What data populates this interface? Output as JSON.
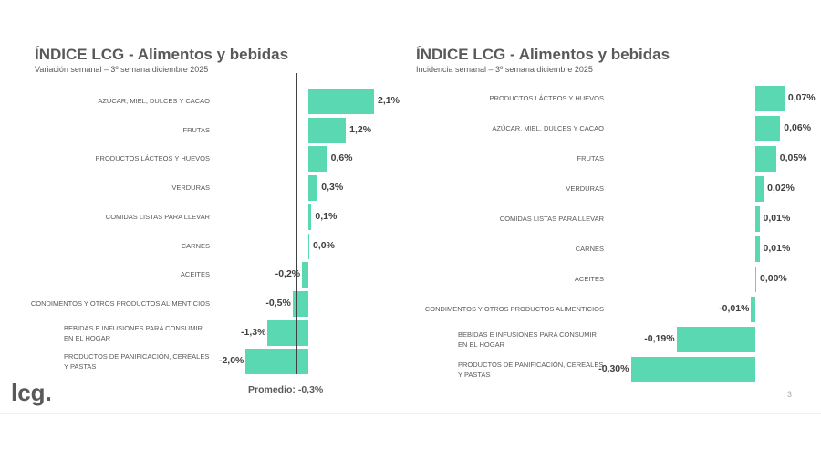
{
  "chart_data": [
    {
      "type": "bar",
      "orientation": "horizontal",
      "title": "ÍNDICE LCG - Alimentos y bebidas",
      "subtitle": "Variación semanal – 3º semana diciembre 2025",
      "categories": [
        "AZÚCAR, MIEL, DULCES Y CACAO",
        "FRUTAS",
        "PRODUCTOS LÁCTEOS Y HUEVOS",
        "VERDURAS",
        "COMIDAS LISTAS PARA LLEVAR",
        "CARNES",
        "ACEITES",
        "CONDIMENTOS Y OTROS PRODUCTOS ALIMENTICIOS",
        "BEBIDAS E INFUSIONES PARA CONSUMIR EN EL HOGAR",
        "PRODUCTOS DE PANIFICACIÓN, CEREALES Y PASTAS"
      ],
      "values": [
        2.1,
        1.2,
        0.6,
        0.3,
        0.1,
        0.0,
        -0.2,
        -0.5,
        -1.3,
        -2.0
      ],
      "labels": [
        "2,1%",
        "1,2%",
        "0,6%",
        "0,3%",
        "0,1%",
        "0,0%",
        "-0,2%",
        "-0,5%",
        "-1,3%",
        "-2,0%"
      ],
      "average": -0.3,
      "average_label": "Promedio: -0,3%",
      "color": "#5ad8b2"
    },
    {
      "type": "bar",
      "orientation": "horizontal",
      "title": "ÍNDICE LCG - Alimentos y bebidas",
      "subtitle": "Incidencia semanal – 3º semana diciembre 2025",
      "categories": [
        "PRODUCTOS LÁCTEOS Y HUEVOS",
        "AZÚCAR, MIEL, DULCES Y CACAO",
        "FRUTAS",
        "VERDURAS",
        "COMIDAS LISTAS PARA LLEVAR",
        "CARNES",
        "ACEITES",
        "CONDIMENTOS Y OTROS PRODUCTOS ALIMENTICIOS",
        "BEBIDAS E INFUSIONES PARA CONSUMIR EN EL HOGAR",
        "PRODUCTOS DE PANIFICACIÓN, CEREALES Y PASTAS"
      ],
      "values": [
        0.07,
        0.06,
        0.05,
        0.02,
        0.01,
        0.01,
        0.0,
        -0.01,
        -0.19,
        -0.3
      ],
      "labels": [
        "0,07%",
        "0,06%",
        "0,05%",
        "0,02%",
        "0,01%",
        "0,01%",
        "0,00%",
        "-0,01%",
        "-0,19%",
        "-0,30%"
      ],
      "color": "#5ad8b2"
    }
  ],
  "logo": "lcg.",
  "page_number": "3"
}
